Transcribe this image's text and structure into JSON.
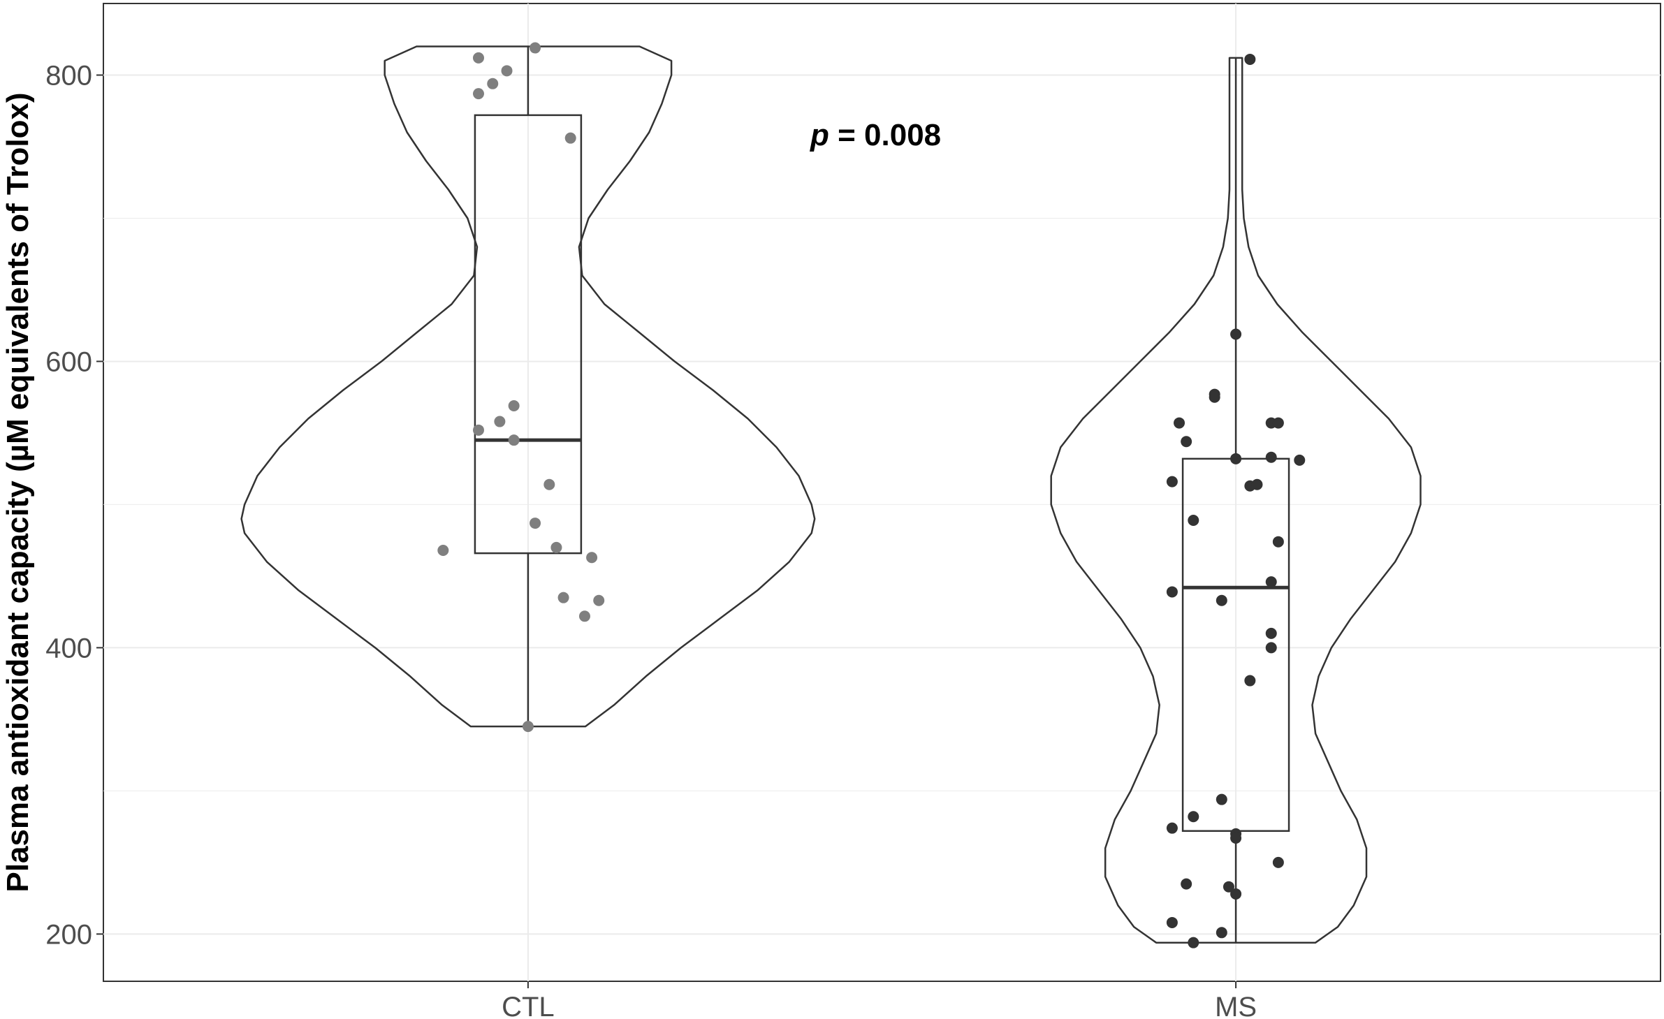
{
  "chart_data": {
    "type": "violin",
    "ylabel": "Plasma antioxidant capacity (µM equivalents of Trolox)",
    "xlabel": "",
    "categories": [
      "CTL",
      "MS"
    ],
    "ylim": [
      167,
      850
    ],
    "yticks": [
      200,
      400,
      600,
      800
    ],
    "grid": true,
    "annotation": {
      "italic": "p",
      "rest": " = 0.008"
    },
    "colors": {
      "CTL_points": "#7f7f7f",
      "MS_points": "#333333",
      "outline": "#333333",
      "grid": "#ebebeb"
    },
    "groups": [
      {
        "name": "CTL",
        "violin": {
          "min": 345,
          "max": 820,
          "profile": [
            [
              345,
              0.18
            ],
            [
              360,
              0.27
            ],
            [
              380,
              0.37
            ],
            [
              400,
              0.48
            ],
            [
              420,
              0.6
            ],
            [
              440,
              0.72
            ],
            [
              460,
              0.82
            ],
            [
              480,
              0.89
            ],
            [
              490,
              0.9
            ],
            [
              500,
              0.89
            ],
            [
              520,
              0.85
            ],
            [
              540,
              0.78
            ],
            [
              560,
              0.69
            ],
            [
              580,
              0.58
            ],
            [
              600,
              0.46
            ],
            [
              620,
              0.35
            ],
            [
              640,
              0.24
            ],
            [
              660,
              0.17
            ],
            [
              680,
              0.16
            ],
            [
              700,
              0.19
            ],
            [
              720,
              0.25
            ],
            [
              740,
              0.32
            ],
            [
              760,
              0.38
            ],
            [
              780,
              0.42
            ],
            [
              800,
              0.45
            ],
            [
              810,
              0.45
            ],
            [
              820,
              0.35
            ]
          ]
        },
        "box": {
          "q1": 466,
          "median": 545,
          "q3": 772,
          "whisker_low": 345,
          "whisker_high": 820
        },
        "points": [
          {
            "x": 0.93,
            "y": 812
          },
          {
            "x": 1.01,
            "y": 819
          },
          {
            "x": 0.97,
            "y": 803
          },
          {
            "x": 0.95,
            "y": 794
          },
          {
            "x": 0.93,
            "y": 787
          },
          {
            "x": 1.06,
            "y": 756
          },
          {
            "x": 0.98,
            "y": 569
          },
          {
            "x": 0.96,
            "y": 558
          },
          {
            "x": 0.93,
            "y": 552
          },
          {
            "x": 0.98,
            "y": 545
          },
          {
            "x": 1.03,
            "y": 514
          },
          {
            "x": 1.01,
            "y": 487
          },
          {
            "x": 1.04,
            "y": 470
          },
          {
            "x": 0.88,
            "y": 468
          },
          {
            "x": 1.09,
            "y": 463
          },
          {
            "x": 1.05,
            "y": 435
          },
          {
            "x": 1.1,
            "y": 433
          },
          {
            "x": 1.08,
            "y": 422
          },
          {
            "x": 1.0,
            "y": 345
          }
        ]
      },
      {
        "name": "MS",
        "violin": {
          "min": 194,
          "max": 812,
          "profile": [
            [
              194,
              0.25
            ],
            [
              205,
              0.32
            ],
            [
              220,
              0.37
            ],
            [
              240,
              0.41
            ],
            [
              260,
              0.41
            ],
            [
              280,
              0.38
            ],
            [
              300,
              0.33
            ],
            [
              320,
              0.29
            ],
            [
              340,
              0.25
            ],
            [
              360,
              0.24
            ],
            [
              380,
              0.26
            ],
            [
              400,
              0.3
            ],
            [
              420,
              0.36
            ],
            [
              440,
              0.43
            ],
            [
              460,
              0.5
            ],
            [
              480,
              0.55
            ],
            [
              500,
              0.58
            ],
            [
              520,
              0.58
            ],
            [
              540,
              0.55
            ],
            [
              560,
              0.48
            ],
            [
              580,
              0.39
            ],
            [
              600,
              0.3
            ],
            [
              620,
              0.21
            ],
            [
              640,
              0.13
            ],
            [
              660,
              0.07
            ],
            [
              680,
              0.04
            ],
            [
              700,
              0.025
            ],
            [
              720,
              0.02
            ],
            [
              760,
              0.02
            ],
            [
              800,
              0.02
            ],
            [
              812,
              0.02
            ]
          ]
        },
        "box": {
          "q1": 272,
          "median": 442,
          "q3": 532,
          "whisker_low": 194,
          "whisker_high": 812
        },
        "points": [
          {
            "x": 2.02,
            "y": 811
          },
          {
            "x": 2.0,
            "y": 619
          },
          {
            "x": 1.97,
            "y": 577
          },
          {
            "x": 1.97,
            "y": 575
          },
          {
            "x": 1.92,
            "y": 557
          },
          {
            "x": 2.05,
            "y": 557
          },
          {
            "x": 2.06,
            "y": 557
          },
          {
            "x": 1.93,
            "y": 544
          },
          {
            "x": 2.0,
            "y": 532
          },
          {
            "x": 2.05,
            "y": 533
          },
          {
            "x": 2.09,
            "y": 531
          },
          {
            "x": 1.91,
            "y": 516
          },
          {
            "x": 2.02,
            "y": 513
          },
          {
            "x": 2.03,
            "y": 514
          },
          {
            "x": 1.94,
            "y": 489
          },
          {
            "x": 2.06,
            "y": 474
          },
          {
            "x": 2.05,
            "y": 446
          },
          {
            "x": 1.91,
            "y": 439
          },
          {
            "x": 1.98,
            "y": 433
          },
          {
            "x": 2.05,
            "y": 410
          },
          {
            "x": 2.05,
            "y": 400
          },
          {
            "x": 2.02,
            "y": 377
          },
          {
            "x": 1.98,
            "y": 294
          },
          {
            "x": 1.94,
            "y": 282
          },
          {
            "x": 1.91,
            "y": 274
          },
          {
            "x": 2.0,
            "y": 270
          },
          {
            "x": 2.0,
            "y": 267
          },
          {
            "x": 2.06,
            "y": 250
          },
          {
            "x": 1.93,
            "y": 235
          },
          {
            "x": 1.99,
            "y": 233
          },
          {
            "x": 2.0,
            "y": 228
          },
          {
            "x": 1.91,
            "y": 208
          },
          {
            "x": 1.98,
            "y": 201
          },
          {
            "x": 1.94,
            "y": 194
          }
        ]
      }
    ]
  }
}
